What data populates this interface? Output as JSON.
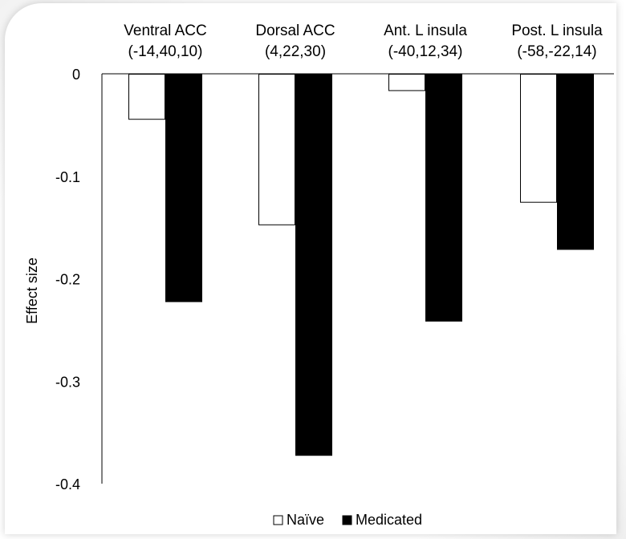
{
  "chart_data": {
    "type": "bar",
    "categories": [
      [
        "Ventral ACC",
        "(-14,40,10)"
      ],
      [
        "Dorsal ACC",
        "(4,22,30)"
      ],
      [
        "Ant. L insula",
        "(-40,12,34)"
      ],
      [
        "Post. L insula",
        "(-58,-22,14)"
      ]
    ],
    "series": [
      {
        "name": "Naïve",
        "values": [
          -0.044,
          -0.147,
          -0.016,
          -0.125
        ],
        "color": "#ffffff",
        "stroke": "#000000"
      },
      {
        "name": "Medicated",
        "values": [
          -0.222,
          -0.372,
          -0.241,
          -0.171
        ],
        "color": "#000000",
        "stroke": "#000000"
      }
    ],
    "ylabel": "Effect size",
    "ylim": [
      -0.4,
      0
    ],
    "yticks": [
      0,
      -0.1,
      -0.2,
      -0.3,
      -0.4
    ],
    "ytick_labels": [
      "0",
      "-0.1",
      "-0.2",
      "-0.3",
      "-0.4"
    ],
    "legend_position": "bottom",
    "grid": false
  }
}
